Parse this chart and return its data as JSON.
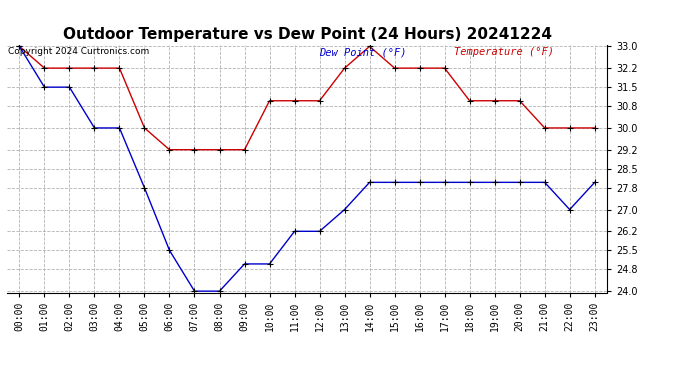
{
  "title": "Outdoor Temperature vs Dew Point (24 Hours) 20241224",
  "copyright": "Copyright 2024 Curtronics.com",
  "legend_dew": "Dew Point (°F)",
  "legend_temp": "Temperature (°F)",
  "hours": [
    "00:00",
    "01:00",
    "02:00",
    "03:00",
    "04:00",
    "05:00",
    "06:00",
    "07:00",
    "08:00",
    "09:00",
    "10:00",
    "11:00",
    "12:00",
    "13:00",
    "14:00",
    "15:00",
    "16:00",
    "17:00",
    "18:00",
    "19:00",
    "20:00",
    "21:00",
    "22:00",
    "23:00"
  ],
  "temperature": [
    33.0,
    32.2,
    32.2,
    32.2,
    32.2,
    30.0,
    29.2,
    29.2,
    29.2,
    29.2,
    31.0,
    31.0,
    31.0,
    32.2,
    33.0,
    32.2,
    32.2,
    32.2,
    31.0,
    31.0,
    31.0,
    30.0,
    30.0,
    30.0
  ],
  "dew_point": [
    33.0,
    31.5,
    31.5,
    30.0,
    30.0,
    27.8,
    25.5,
    24.0,
    24.0,
    25.0,
    25.0,
    26.2,
    26.2,
    27.0,
    28.0,
    28.0,
    28.0,
    28.0,
    28.0,
    28.0,
    28.0,
    28.0,
    27.0,
    28.0
  ],
  "temp_color": "#cc0000",
  "dew_color": "#0000cc",
  "marker_color": "#000000",
  "ylim_min": 24.0,
  "ylim_max": 33.0,
  "yticks": [
    24.0,
    24.8,
    25.5,
    26.2,
    27.0,
    27.8,
    28.5,
    29.2,
    30.0,
    30.8,
    31.5,
    32.2,
    33.0
  ],
  "bg_color": "#ffffff",
  "grid_color": "#aaaaaa",
  "title_fontsize": 11,
  "tick_fontsize": 7,
  "legend_fontsize": 7.5,
  "copyright_fontsize": 6.5
}
